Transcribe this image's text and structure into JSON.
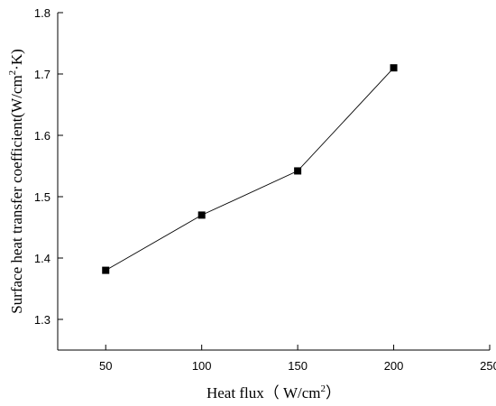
{
  "chart_data": {
    "type": "line",
    "x": [
      50,
      100,
      150,
      200
    ],
    "series": [
      {
        "values": [
          1.38,
          1.47,
          1.542,
          1.71
        ]
      }
    ],
    "xlabel": {
      "main": "Heat flux（ W/cm",
      "sup": "2",
      "end": "）"
    },
    "ylabel": {
      "main": "Surface heat transfer coefficient(W/cm",
      "sup": "2",
      "end": "·K)"
    },
    "xlim": [
      25,
      250
    ],
    "ylim": [
      1.25,
      1.8
    ],
    "xticks": [
      50,
      100,
      150,
      200,
      250
    ],
    "yticks": [
      1.3,
      1.4,
      1.5,
      1.6,
      1.7,
      1.8
    ],
    "xtick_labels": [
      "50",
      "100",
      "150",
      "200",
      "250"
    ],
    "ytick_labels": [
      "1.3",
      "1.4",
      "1.5",
      "1.6",
      "1.7",
      "1.8"
    ],
    "grid": false,
    "legend": "none",
    "colors": {
      "line": "#000000",
      "marker": "#000000"
    }
  }
}
